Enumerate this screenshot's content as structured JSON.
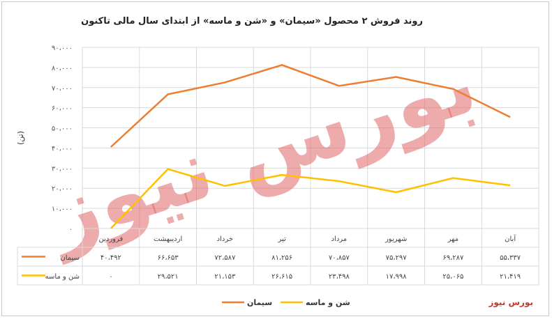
{
  "chart_data": {
    "type": "line",
    "title": "روند فروش ۲ محصول «سیمان» و «شن و ماسه» از ابتدای سال مالی تاکنون",
    "ylabel": "(تن)",
    "ylim": [
      0,
      90000
    ],
    "yticks": [
      0,
      10000,
      20000,
      30000,
      40000,
      50000,
      60000,
      70000,
      80000,
      90000
    ],
    "ytick_labels": [
      "۰",
      "۱۰،۰۰۰",
      "۲۰،۰۰۰",
      "۳۰،۰۰۰",
      "۴۰،۰۰۰",
      "۵۰،۰۰۰",
      "۶۰،۰۰۰",
      "۷۰،۰۰۰",
      "۸۰،۰۰۰",
      "۹۰،۰۰۰"
    ],
    "categories": [
      "فروردین",
      "اردیبهشت",
      "خرداد",
      "تیر",
      "مرداد",
      "شهریور",
      "مهر",
      "آبان"
    ],
    "series": [
      {
        "name": "سیمان",
        "color": "#ED7D31",
        "values": [
          40492,
          66653,
          72587,
          81256,
          70857,
          75297,
          69287,
          55337
        ],
        "labels": [
          "۴۰،۴۹۲",
          "۶۶،۶۵۳",
          "۷۲،۵۸۷",
          "۸۱،۲۵۶",
          "۷۰،۸۵۷",
          "۷۵،۲۹۷",
          "۶۹،۲۸۷",
          "۵۵،۳۳۷"
        ]
      },
      {
        "name": "شن و ماسه",
        "color": "#FFC000",
        "values": [
          0,
          29521,
          21153,
          26615,
          23498,
          17998,
          25065,
          21419
        ],
        "labels": [
          "۰",
          "۲۹،۵۲۱",
          "۲۱،۱۵۳",
          "۲۶،۶۱۵",
          "۲۳،۴۹۸",
          "۱۷،۹۹۸",
          "۲۵،۰۶۵",
          "۲۱،۴۱۹"
        ]
      }
    ],
    "grid": true,
    "legend": "bottom"
  },
  "watermark": {
    "text": "بورس نیوز",
    "color": "#e06666"
  },
  "brand": "بورس نیوز"
}
